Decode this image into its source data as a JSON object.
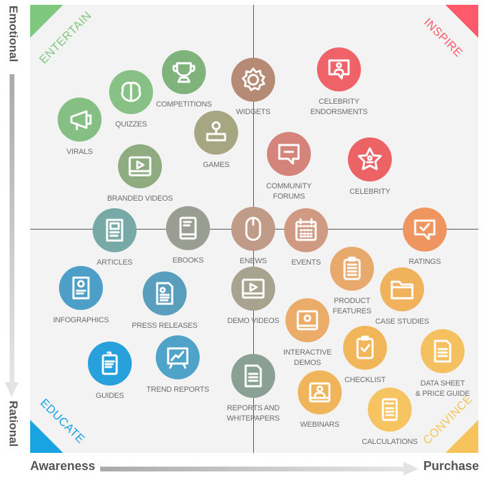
{
  "axes": {
    "top": "Emotional",
    "bottom": "Rational",
    "left": "Awareness",
    "right": "Purchase"
  },
  "quadrants": [
    {
      "label": "ENTERTAIN",
      "color": "#7fc77f"
    },
    {
      "label": "INSPIRE",
      "color": "#ff5a6a"
    },
    {
      "label": "EDUCATE",
      "color": "#1aa3e3"
    },
    {
      "label": "CONVINCE",
      "color": "#f7c35c"
    }
  ],
  "items": [
    {
      "label": [
        "VIRALS"
      ],
      "color": "#86bf84",
      "icon": "megaphone"
    },
    {
      "label": [
        "QUIZZES"
      ],
      "color": "#88c186",
      "icon": "brain"
    },
    {
      "label": [
        "COMPETITIONS"
      ],
      "color": "#80b27b",
      "icon": "trophy"
    },
    {
      "label": [
        "WIDGETS"
      ],
      "color": "#b68b75",
      "icon": "gear"
    },
    {
      "label": [
        "CELEBRITY",
        "ENDORSMENTS"
      ],
      "color": "#ef6268",
      "icon": "person-speech"
    },
    {
      "label": [
        "GAMES"
      ],
      "color": "#a7a683",
      "icon": "joystick"
    },
    {
      "label": [
        "BRANDED VIDEOS"
      ],
      "color": "#8fac80",
      "icon": "video"
    },
    {
      "label": [
        "COMMUNITY",
        "FORUMS"
      ],
      "color": "#d4847a",
      "icon": "speech"
    },
    {
      "label": [
        "CELEBRITY"
      ],
      "color": "#ec6366",
      "icon": "star"
    },
    {
      "label": [
        "ARTICLES"
      ],
      "color": "#77aaa6",
      "icon": "article"
    },
    {
      "label": [
        "EBOOKS"
      ],
      "color": "#9a9e92",
      "icon": "book"
    },
    {
      "label": [
        "ENEWS"
      ],
      "color": "#bf9b88",
      "icon": "mouse"
    },
    {
      "label": [
        "EVENTS"
      ],
      "color": "#d09a82",
      "icon": "calendar"
    },
    {
      "label": [
        "RATINGS"
      ],
      "color": "#ef9560",
      "icon": "check-speech"
    },
    {
      "label": [
        "PRODUCT",
        "FEATURES"
      ],
      "color": "#e8aa6c",
      "icon": "clipboard-list"
    },
    {
      "label": [
        "CASE STUDIES"
      ],
      "color": "#f1b25e",
      "icon": "folder"
    },
    {
      "label": [
        "INFOGRAPHICS"
      ],
      "color": "#4d9fc8",
      "icon": "infographic"
    },
    {
      "label": [
        "PRESS RELEASES"
      ],
      "color": "#5a9ebd",
      "icon": "press"
    },
    {
      "label": [
        "DEMO VIDEOS"
      ],
      "color": "#a8a38f",
      "icon": "video"
    },
    {
      "label": [
        "INTERACTIVE",
        "DEMOS"
      ],
      "color": "#ebac69",
      "icon": "monitor"
    },
    {
      "label": [
        "CHECKLIST"
      ],
      "color": "#f2b65a",
      "icon": "clipboard-check"
    },
    {
      "label": [
        "DATA SHEET",
        "& PRICE GUIDE"
      ],
      "color": "#f5c060",
      "icon": "document"
    },
    {
      "label": [
        "GUIDES"
      ],
      "color": "#27a0dc",
      "icon": "guide"
    },
    {
      "label": [
        "TREND REPORTS"
      ],
      "color": "#4fa2c8",
      "icon": "easel"
    },
    {
      "label": [
        "REPORTS AND",
        "WHITEPAPERS"
      ],
      "color": "#8aa094",
      "icon": "document"
    },
    {
      "label": [
        "WEBINARS"
      ],
      "color": "#f0b45a",
      "icon": "webinar"
    },
    {
      "label": [
        "CALCULATIONS"
      ],
      "color": "#f7c462",
      "icon": "calculator"
    }
  ]
}
